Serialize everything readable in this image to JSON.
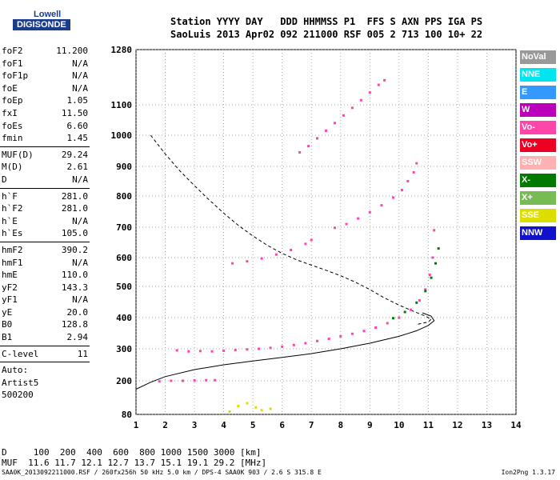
{
  "logo": {
    "line1": "Lowell",
    "line2": "DIGISONDE"
  },
  "header": {
    "line1": "Station YYYY DAY   DDD HHMMSS P1  FFS S AXN PPS IGA PS",
    "line2": "SaoLuis 2013 Apr02 092 211000 RSF 005 2 713 100 10+ 22"
  },
  "params": {
    "group1": [
      {
        "k": "foF2",
        "v": "11.200"
      },
      {
        "k": "foF1",
        "v": "N/A"
      },
      {
        "k": "foF1p",
        "v": "N/A"
      },
      {
        "k": "foE",
        "v": "N/A"
      },
      {
        "k": "foEp",
        "v": "1.05"
      },
      {
        "k": "fxI",
        "v": "11.50"
      },
      {
        "k": "foEs",
        "v": "6.60"
      },
      {
        "k": "fmin",
        "v": "1.45"
      }
    ],
    "group2": [
      {
        "k": "MUF(D)",
        "v": "29.24"
      },
      {
        "k": "M(D)",
        "v": "2.61"
      },
      {
        "k": "D",
        "v": "N/A"
      }
    ],
    "group3": [
      {
        "k": "h`F",
        "v": "281.0"
      },
      {
        "k": "h`F2",
        "v": "281.0"
      },
      {
        "k": "h`E",
        "v": "N/A"
      },
      {
        "k": "h`Es",
        "v": "105.0"
      }
    ],
    "group4": [
      {
        "k": "hmF2",
        "v": "390.2"
      },
      {
        "k": "hmF1",
        "v": "N/A"
      },
      {
        "k": "hmE",
        "v": "110.0"
      },
      {
        "k": "yF2",
        "v": "143.3"
      },
      {
        "k": "yF1",
        "v": "N/A"
      },
      {
        "k": "yE",
        "v": "20.0"
      },
      {
        "k": "B0",
        "v": "128.8"
      },
      {
        "k": "B1",
        "v": "2.94"
      }
    ],
    "group5": [
      {
        "k": "C-level",
        "v": "11"
      }
    ],
    "auto": [
      "Auto:",
      "Artist5",
      "500200"
    ]
  },
  "legend": [
    {
      "label": "NoVal",
      "color": "#999999"
    },
    {
      "label": "NNE",
      "color": "#00e5f0"
    },
    {
      "label": "E",
      "color": "#3399ff"
    },
    {
      "label": "W",
      "color": "#bb00bb"
    },
    {
      "label": "Vo-",
      "color": "#ff44aa"
    },
    {
      "label": "Vo+",
      "color": "#ee0022"
    },
    {
      "label": "SSW",
      "color": "#ffb0b0"
    },
    {
      "label": "X-",
      "color": "#007a00"
    },
    {
      "label": "X+",
      "color": "#77bb55"
    },
    {
      "label": "SSE",
      "color": "#dddd00"
    },
    {
      "label": "NNW",
      "color": "#1111cc"
    }
  ],
  "bottom": {
    "line1": "D     100  200  400  600  800 1000 1500 3000 [km]",
    "line2": "MUF  11.6 11.7 12.1 12.7 13.7 15.1 19.1 29.2 [MHz]"
  },
  "footer": "SAA0K_2013092211000.RSF / 260fx256h 50 kHz 5.0 km / DPS-4 SAA0K 903 / 2.6 S 315.8 E",
  "version": "Ion2Png 1.3.17",
  "chart_data": {
    "type": "scatter",
    "title": "",
    "xlabel": "",
    "ylabel": "",
    "xlim": [
      1,
      14
    ],
    "ylim": [
      80,
      1280
    ],
    "x_ticks": [
      1,
      2,
      3,
      4,
      5,
      6,
      7,
      8,
      9,
      10,
      11,
      12,
      13,
      14
    ],
    "y_ticks": [
      80,
      200,
      300,
      400,
      500,
      600,
      700,
      800,
      900,
      1000,
      1100,
      1280
    ],
    "grid": true,
    "legend_placement": "right",
    "series": [
      {
        "color": "#ff44aa",
        "points": [
          [
            2.4,
            295
          ],
          [
            2.8,
            292
          ],
          [
            3.2,
            293
          ],
          [
            3.6,
            292
          ],
          [
            4.0,
            294
          ],
          [
            4.4,
            296
          ],
          [
            4.8,
            298
          ],
          [
            5.2,
            300
          ],
          [
            5.6,
            303
          ],
          [
            6.0,
            307
          ],
          [
            6.4,
            312
          ],
          [
            6.8,
            318
          ],
          [
            7.2,
            325
          ],
          [
            7.6,
            332
          ],
          [
            8.0,
            340
          ],
          [
            8.4,
            348
          ],
          [
            8.8,
            357
          ],
          [
            9.2,
            368
          ],
          [
            9.6,
            382
          ],
          [
            10.0,
            400
          ],
          [
            10.4,
            425
          ],
          [
            10.7,
            455
          ],
          [
            10.9,
            490
          ],
          [
            11.05,
            540
          ],
          [
            11.15,
            600
          ],
          [
            11.2,
            690
          ]
        ]
      },
      {
        "color": "#007a00",
        "points": [
          [
            9.8,
            398
          ],
          [
            10.2,
            418
          ],
          [
            10.6,
            448
          ],
          [
            10.9,
            485
          ],
          [
            11.1,
            530
          ],
          [
            11.25,
            580
          ],
          [
            11.35,
            630
          ]
        ]
      },
      {
        "color": "#ff44aa",
        "points": [
          [
            4.3,
            580
          ],
          [
            4.8,
            587
          ],
          [
            5.3,
            597
          ],
          [
            5.8,
            610
          ],
          [
            6.3,
            625
          ],
          [
            6.8,
            645
          ],
          [
            7.0,
            658
          ]
        ]
      },
      {
        "color": "#ff44aa",
        "points": [
          [
            7.8,
            698
          ],
          [
            8.2,
            710
          ],
          [
            8.6,
            728
          ],
          [
            9.0,
            748
          ],
          [
            9.4,
            770
          ],
          [
            9.8,
            795
          ],
          [
            10.1,
            820
          ],
          [
            10.3,
            850
          ],
          [
            10.5,
            880
          ],
          [
            10.6,
            910
          ]
        ]
      },
      {
        "color": "#ff44aa",
        "points": [
          [
            6.6,
            945
          ],
          [
            6.9,
            965
          ],
          [
            7.2,
            990
          ],
          [
            7.5,
            1015
          ],
          [
            7.8,
            1040
          ],
          [
            8.1,
            1065
          ],
          [
            8.4,
            1090
          ],
          [
            8.7,
            1115
          ],
          [
            9.0,
            1140
          ],
          [
            9.3,
            1165
          ],
          [
            9.5,
            1180
          ]
        ]
      },
      {
        "color": "#ff44aa",
        "points": [
          [
            1.8,
            198
          ],
          [
            2.2,
            200
          ],
          [
            2.6,
            200
          ],
          [
            3.0,
            201
          ],
          [
            3.4,
            202
          ],
          [
            3.7,
            202
          ]
        ]
      },
      {
        "color": "#dddd00",
        "points": [
          [
            4.2,
            90
          ],
          [
            4.5,
            110
          ],
          [
            4.8,
            120
          ],
          [
            5.1,
            105
          ],
          [
            5.3,
            95
          ],
          [
            5.6,
            100
          ]
        ]
      }
    ],
    "curves": [
      {
        "name": "",
        "style": "solid",
        "points": [
          [
            1.0,
            170
          ],
          [
            1.5,
            195
          ],
          [
            2.0,
            213
          ],
          [
            3.0,
            235
          ],
          [
            4.0,
            250
          ],
          [
            5.0,
            262
          ],
          [
            6.0,
            273
          ],
          [
            7.0,
            285
          ],
          [
            8.0,
            300
          ],
          [
            9.0,
            318
          ],
          [
            10.0,
            340
          ],
          [
            10.6,
            358
          ],
          [
            11.0,
            375
          ],
          [
            11.2,
            390
          ],
          [
            11.1,
            405
          ],
          [
            10.8,
            415
          ]
        ]
      },
      {
        "name": "",
        "style": "dashed",
        "points": [
          [
            1.5,
            1000
          ],
          [
            2.0,
            940
          ],
          [
            2.5,
            885
          ],
          [
            3.0,
            835
          ],
          [
            3.5,
            788
          ],
          [
            4.0,
            745
          ],
          [
            4.5,
            706
          ],
          [
            5.0,
            671
          ],
          [
            5.5,
            640
          ],
          [
            6.0,
            614
          ],
          [
            6.5,
            592
          ],
          [
            7.0,
            574
          ],
          [
            7.5,
            556
          ],
          [
            8.0,
            537
          ],
          [
            8.5,
            515
          ],
          [
            9.0,
            490
          ],
          [
            9.5,
            463
          ],
          [
            10.0,
            440
          ],
          [
            10.5,
            420
          ],
          [
            10.9,
            405
          ],
          [
            11.1,
            395
          ],
          [
            11.0,
            386
          ],
          [
            10.6,
            378
          ]
        ]
      }
    ]
  }
}
